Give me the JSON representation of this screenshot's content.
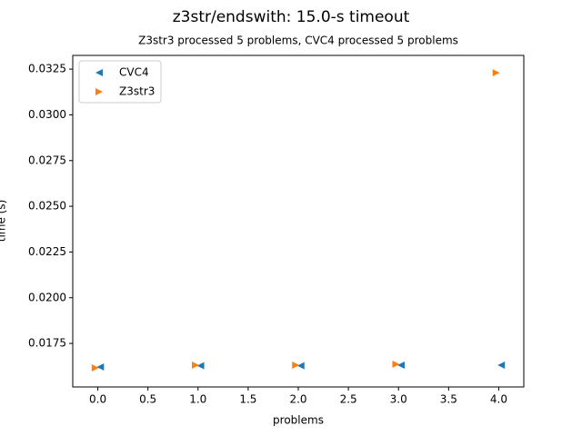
{
  "chart_data": {
    "type": "scatter",
    "title": "z3str/endswith: 15.0-s timeout",
    "subtitle": "Z3str3 processed 5 problems, CVC4 processed 5 problems",
    "x_label": "problems",
    "y_label": "time (s)",
    "series": [
      {
        "name": "CVC4",
        "color": "#1f77b4",
        "marker": "triangle-left",
        "x": [
          0.025,
          1.025,
          2.025,
          3.025,
          4.025
        ],
        "values": [
          0.01621,
          0.01628,
          0.01628,
          0.01631,
          0.01631
        ]
      },
      {
        "name": "Z3str3",
        "color": "#ff7f0e",
        "marker": "triangle-right",
        "x": [
          -0.025,
          0.975,
          1.975,
          2.975,
          3.975
        ],
        "values": [
          0.01616,
          0.01631,
          0.01631,
          0.01636,
          0.0323
        ]
      }
    ],
    "xlim": [
      -0.25,
      4.25
    ],
    "xticks": [
      {
        "value": 0,
        "label": "0.0"
      },
      {
        "value": 0.5,
        "label": "0.5"
      },
      {
        "value": 1,
        "label": "1.0"
      },
      {
        "value": 1.5,
        "label": "1.5"
      },
      {
        "value": 2,
        "label": "2.0"
      },
      {
        "value": 2.5,
        "label": "2.5"
      },
      {
        "value": 3,
        "label": "3.0"
      },
      {
        "value": 3.5,
        "label": "3.5"
      },
      {
        "value": 4,
        "label": "4.0"
      }
    ],
    "ylim": [
      0.01512,
      0.03325
    ],
    "yticks": [
      0.0175,
      {
        "value": 0.02,
        "label": "0.0200"
      },
      0.0225,
      {
        "value": 0.025,
        "label": "0.0250"
      },
      0.0275,
      {
        "value": 0.03,
        "label": "0.0300"
      },
      0.0325
    ],
    "grid": false,
    "legend": "upper left"
  }
}
